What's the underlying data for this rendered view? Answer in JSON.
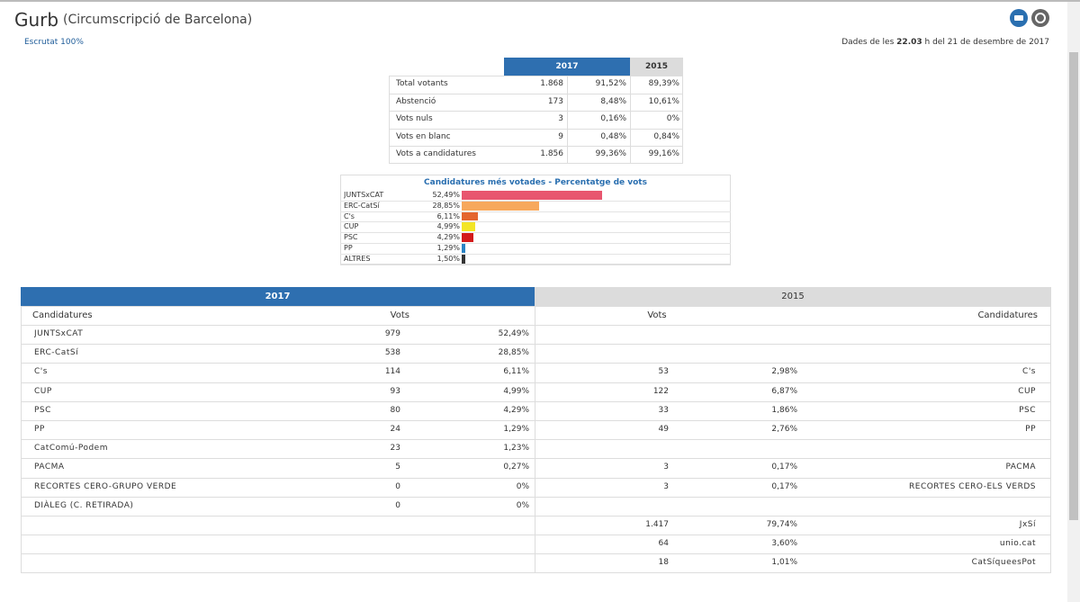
{
  "header": {
    "title": "Gurb",
    "subtitle": "(Circumscripció de Barcelona)",
    "scrutiny": "Escrutat 100%",
    "timestamp": {
      "prefix": "Dades de les",
      "time": "22.03",
      "suffix": "h del 21 de desembre de 2017"
    }
  },
  "summary": {
    "years": [
      "2017",
      "2015"
    ],
    "rows": [
      [
        "Total votants",
        "1.868",
        "91,52%",
        "89,39%"
      ],
      [
        "Abstenció",
        "173",
        "8,48%",
        "10,61%"
      ],
      [
        "Vots nuls",
        "3",
        "0,16%",
        "0%"
      ],
      [
        "Vots en blanc",
        "9",
        "0,48%",
        "0,84%"
      ],
      [
        "Vots a candidatures",
        "1.856",
        "99,36%",
        "99,16%"
      ]
    ]
  },
  "chart_data": {
    "type": "bar",
    "orientation": "horizontal",
    "title": "Candidatures més votades - Percentatge de vots",
    "categories": [
      "JUNTSxCAT",
      "ERC-CatSí",
      "C's",
      "CUP",
      "PSC",
      "PP",
      "ALTRES"
    ],
    "values": [
      52.49,
      28.85,
      6.11,
      4.99,
      4.29,
      1.29,
      1.5
    ],
    "value_labels": [
      "52,49%",
      "28,85%",
      "6,11%",
      "4,99%",
      "4,29%",
      "1,29%",
      "1,50%"
    ],
    "colors": [
      "#e8566f",
      "#f7a85c",
      "#e4662f",
      "#f3e526",
      "#d31a1a",
      "#2a83c4",
      "#333333"
    ],
    "xlim": [
      0,
      100
    ]
  },
  "results": {
    "years": [
      "2017",
      "2015"
    ],
    "columns": [
      "Candidatures",
      "Vots",
      "Vots",
      "Candidatures"
    ],
    "rows_2017": [
      [
        "JUNTSxCAT",
        "979",
        "52,49%"
      ],
      [
        "ERC-CatSí",
        "538",
        "28,85%"
      ],
      [
        "C's",
        "114",
        "6,11%"
      ],
      [
        "CUP",
        "93",
        "4,99%"
      ],
      [
        "PSC",
        "80",
        "4,29%"
      ],
      [
        "PP",
        "24",
        "1,29%"
      ],
      [
        "CatComú-Podem",
        "23",
        "1,23%"
      ],
      [
        "PACMA",
        "5",
        "0,27%"
      ],
      [
        "RECORTES CERO-GRUPO VERDE",
        "0",
        "0%"
      ],
      [
        "DIÀLEG (C. RETIRADA)",
        "0",
        "0%"
      ],
      null,
      null,
      null
    ],
    "rows_2015": [
      null,
      null,
      [
        "53",
        "2,98%",
        "C's"
      ],
      [
        "122",
        "6,87%",
        "CUP"
      ],
      [
        "33",
        "1,86%",
        "PSC"
      ],
      [
        "49",
        "2,76%",
        "PP"
      ],
      null,
      [
        "3",
        "0,17%",
        "PACMA"
      ],
      [
        "3",
        "0,17%",
        "RECORTES CERO-ELS VERDS"
      ],
      null,
      [
        "1.417",
        "79,74%",
        "JxSí"
      ],
      [
        "64",
        "3,60%",
        "unio.cat"
      ],
      [
        "18",
        "1,01%",
        "CatSíqueesPot"
      ]
    ]
  }
}
